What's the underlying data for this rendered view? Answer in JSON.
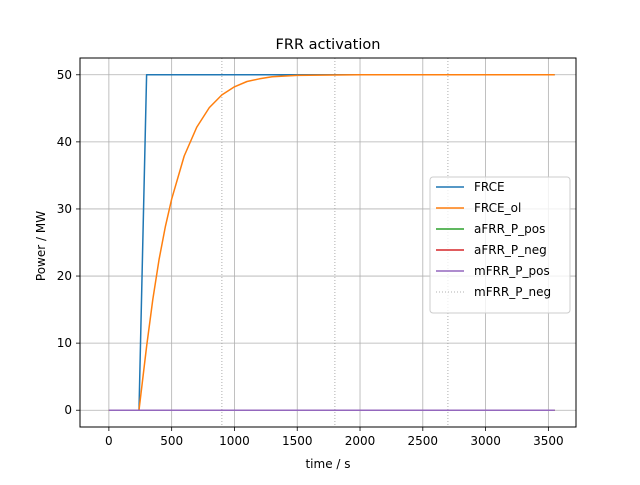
{
  "chart_data": {
    "type": "line",
    "title": "FRR activation",
    "xlabel": "time / s",
    "ylabel": "Power / MW",
    "xlim": [
      -230,
      3720
    ],
    "ylim": [
      -2.5,
      52.5
    ],
    "x_ticks": [
      0,
      500,
      1000,
      1500,
      2000,
      2500,
      3000,
      3500
    ],
    "y_ticks": [
      0,
      10,
      20,
      30,
      40,
      50
    ],
    "grid": true,
    "legend_position": "center-right",
    "extra_vertical_dotted_lines_x": [
      900,
      1800,
      2700
    ],
    "series": [
      {
        "name": "FRCE",
        "color": "#1f77b4",
        "style": "solid",
        "points": [
          [
            0,
            0
          ],
          [
            240,
            0
          ],
          [
            300,
            50
          ],
          [
            3550,
            50
          ]
        ]
      },
      {
        "name": "FRCE_ol",
        "color": "#ff7f0e",
        "style": "solid",
        "points": [
          [
            0,
            0
          ],
          [
            240,
            0
          ],
          [
            300,
            9.5
          ],
          [
            350,
            16.5
          ],
          [
            400,
            22.5
          ],
          [
            450,
            27.4
          ],
          [
            500,
            31.5
          ],
          [
            600,
            37.9
          ],
          [
            700,
            42.2
          ],
          [
            800,
            45.1
          ],
          [
            900,
            47.0
          ],
          [
            1000,
            48.2
          ],
          [
            1100,
            49.0
          ],
          [
            1200,
            49.4
          ],
          [
            1300,
            49.7
          ],
          [
            1500,
            49.9
          ],
          [
            2000,
            50
          ],
          [
            3550,
            50
          ]
        ]
      },
      {
        "name": "aFRR_P_pos",
        "color": "#2ca02c",
        "style": "solid",
        "points": [
          [
            0,
            0
          ],
          [
            3550,
            0
          ]
        ]
      },
      {
        "name": "aFRR_P_neg",
        "color": "#d62728",
        "style": "solid",
        "points": [
          [
            0,
            0
          ],
          [
            3550,
            0
          ]
        ]
      },
      {
        "name": "mFRR_P_pos",
        "color": "#9467bd",
        "style": "solid",
        "points": [
          [
            0,
            0
          ],
          [
            3550,
            0
          ]
        ]
      },
      {
        "name": "mFRR_P_neg",
        "color": "#999999",
        "style": "dotted",
        "points": []
      }
    ]
  }
}
